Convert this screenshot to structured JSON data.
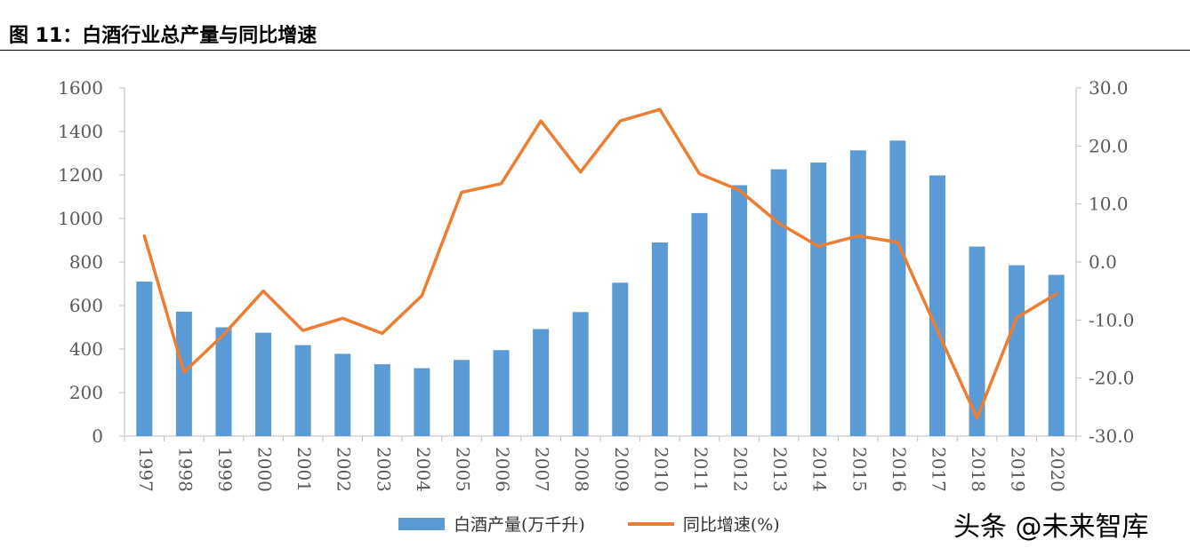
{
  "figure": {
    "title": "图 11：白酒行业总产量与同比增速"
  },
  "watermark": "头条 @未来智库",
  "chart_data": {
    "type": "bar",
    "title": "",
    "categories": [
      "1997",
      "1998",
      "1999",
      "2000",
      "2001",
      "2002",
      "2003",
      "2004",
      "2005",
      "2006",
      "2007",
      "2008",
      "2009",
      "2010",
      "2011",
      "2012",
      "2013",
      "2014",
      "2015",
      "2016",
      "2017",
      "2018",
      "2019",
      "2020"
    ],
    "series": [
      {
        "name": "白酒产量(万千升)",
        "type": "bar",
        "axis": "left",
        "color": "#5b9bd5",
        "values": [
          710,
          572,
          500,
          475,
          418,
          378,
          330,
          312,
          350,
          395,
          492,
          570,
          705,
          890,
          1025,
          1153,
          1226,
          1257,
          1313,
          1358,
          1198,
          871,
          785,
          741
        ]
      },
      {
        "name": "同比增速(%)",
        "type": "line",
        "axis": "right",
        "color": "#ed7d31",
        "values": [
          4.5,
          -19.0,
          -12.5,
          -5.0,
          -11.8,
          -9.7,
          -12.3,
          -5.8,
          12.0,
          13.5,
          24.3,
          15.5,
          24.3,
          26.3,
          15.2,
          12.4,
          6.7,
          2.7,
          4.5,
          3.4,
          -11.8,
          -26.9,
          -9.6,
          -5.5
        ]
      }
    ],
    "y_left": {
      "min": 0,
      "max": 1600,
      "step": 200,
      "tick_labels": [
        "0",
        "200",
        "400",
        "600",
        "800",
        "1000",
        "1200",
        "1400",
        "1600"
      ]
    },
    "y_right": {
      "min": -30,
      "max": 30,
      "step": 10,
      "tick_labels": [
        "-30.0",
        "-20.0",
        "-10.0",
        "0.0",
        "10.0",
        "20.0",
        "30.0"
      ]
    },
    "grid": false,
    "legend_position": "bottom"
  }
}
